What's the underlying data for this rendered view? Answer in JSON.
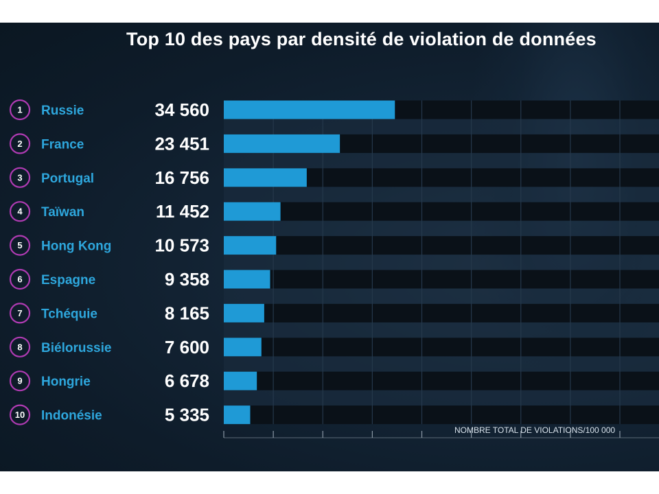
{
  "title": "Top 10 des pays par densité de violation de données",
  "axis_label": "NOMBRE TOTAL DE VIOLATIONS/100 000",
  "colors": {
    "bar": "#1f9ad6",
    "country_text": "#2ea7dd",
    "rank_ring": "#b03bb3",
    "background": "#0e1c2a"
  },
  "chart_data": {
    "type": "bar",
    "orientation": "horizontal",
    "title": "Top 10 des pays par densité de violation de données",
    "xlabel": "NOMBRE TOTAL DE VIOLATIONS/100 000",
    "ylabel": "",
    "xlim": [
      0,
      100000
    ],
    "grid": true,
    "categories": [
      "Russie",
      "France",
      "Portugal",
      "Taïwan",
      "Hong Kong",
      "Espagne",
      "Tchéquie",
      "Biélorussie",
      "Hongrie",
      "Indonésie"
    ],
    "ranks": [
      "1",
      "2",
      "3",
      "4",
      "5",
      "6",
      "7",
      "8",
      "9",
      "10"
    ],
    "values": [
      34560,
      23451,
      16756,
      11452,
      10573,
      9358,
      8165,
      7600,
      6678,
      5335
    ],
    "value_labels": [
      "34 560",
      "23 451",
      "16 756",
      "11 452",
      "10 573",
      "9 358",
      "8 165",
      "7 600",
      "6 678",
      "5 335"
    ]
  }
}
